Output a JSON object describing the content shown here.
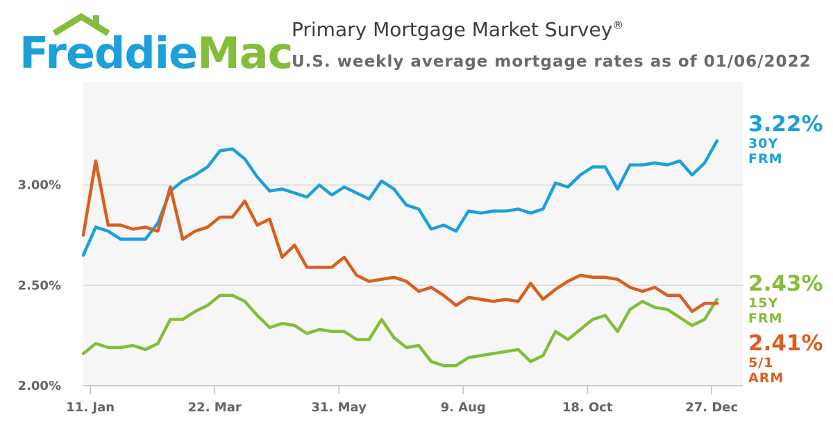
{
  "brand": {
    "name_part1": "Freddie",
    "name_part2": "Mac",
    "blue": "#1ba0db",
    "green": "#84bd3a"
  },
  "header": {
    "title": "Primary Mortgage Market Survey",
    "title_mark": "®",
    "subtitle": "U.S. weekly average mortgage rates as of 01/06/2022"
  },
  "colors": {
    "frm30": "#1ba0db",
    "frm15": "#84bd3a",
    "arm51": "#da5e1e",
    "plot_bg": "#f6f6f6",
    "grid": "#d9d9d9",
    "axis_text": "#666666"
  },
  "series_tags": {
    "frm30": {
      "value": "3.22%",
      "label": "30Y FRM"
    },
    "frm15": {
      "value": "2.43%",
      "label": "15Y FRM"
    },
    "arm51": {
      "value": "2.41%",
      "label": "5/1 ARM"
    }
  },
  "chart_data": {
    "type": "line",
    "title": "Primary Mortgage Market Survey",
    "subtitle": "U.S. weekly average mortgage rates as of 01/06/2022",
    "xlabel": "",
    "ylabel": "",
    "x_unit": "weeks since 07 Jan 2021",
    "x_range": [
      0,
      52
    ],
    "ylim": [
      2.0,
      3.5
    ],
    "y_ticks": [
      {
        "value": 2.0,
        "label": "2.00%"
      },
      {
        "value": 2.5,
        "label": "2.50%"
      },
      {
        "value": 3.0,
        "label": "3.00%"
      }
    ],
    "x_ticks": [
      {
        "week": 0.57,
        "label": "11. Jan"
      },
      {
        "week": 10.57,
        "label": "22. Mar"
      },
      {
        "week": 20.57,
        "label": "31. May"
      },
      {
        "week": 30.57,
        "label": "9. Aug"
      },
      {
        "week": 40.57,
        "label": "18. Oct"
      },
      {
        "week": 50.57,
        "label": "27. Dec"
      }
    ],
    "grid": true,
    "series": [
      {
        "name": "30Y FRM",
        "color": "#1ba0db",
        "values": [
          2.65,
          2.79,
          2.77,
          2.73,
          2.73,
          2.73,
          2.81,
          2.97,
          3.02,
          3.05,
          3.09,
          3.17,
          3.18,
          3.13,
          3.04,
          2.97,
          2.98,
          2.96,
          2.94,
          3.0,
          2.95,
          2.99,
          2.96,
          2.93,
          3.02,
          2.98,
          2.9,
          2.88,
          2.78,
          2.8,
          2.77,
          2.87,
          2.86,
          2.87,
          2.87,
          2.88,
          2.86,
          2.88,
          3.01,
          2.99,
          3.05,
          3.09,
          3.09,
          2.98,
          3.1,
          3.1,
          3.11,
          3.1,
          3.12,
          3.05,
          3.11,
          3.22
        ]
      },
      {
        "name": "15Y FRM",
        "color": "#84bd3a",
        "values": [
          2.16,
          2.21,
          2.19,
          2.19,
          2.2,
          2.18,
          2.21,
          2.33,
          2.33,
          2.37,
          2.4,
          2.45,
          2.45,
          2.42,
          2.35,
          2.29,
          2.31,
          2.3,
          2.26,
          2.28,
          2.27,
          2.27,
          2.23,
          2.23,
          2.33,
          2.24,
          2.19,
          2.2,
          2.12,
          2.1,
          2.1,
          2.14,
          2.15,
          2.16,
          2.17,
          2.18,
          2.12,
          2.15,
          2.27,
          2.23,
          2.28,
          2.33,
          2.35,
          2.27,
          2.38,
          2.42,
          2.39,
          2.38,
          2.34,
          2.3,
          2.33,
          2.43
        ]
      },
      {
        "name": "5/1 ARM",
        "color": "#da5e1e",
        "values": [
          2.75,
          3.12,
          2.8,
          2.8,
          2.78,
          2.79,
          2.77,
          2.99,
          2.73,
          2.77,
          2.79,
          2.84,
          2.84,
          2.92,
          2.8,
          2.83,
          2.64,
          2.7,
          2.59,
          2.59,
          2.59,
          2.64,
          2.55,
          2.52,
          2.53,
          2.54,
          2.52,
          2.47,
          2.49,
          2.45,
          2.4,
          2.44,
          2.43,
          2.42,
          2.43,
          2.42,
          2.51,
          2.43,
          2.48,
          2.52,
          2.55,
          2.54,
          2.54,
          2.53,
          2.49,
          2.47,
          2.49,
          2.45,
          2.45,
          2.37,
          2.41,
          2.41
        ]
      }
    ]
  }
}
